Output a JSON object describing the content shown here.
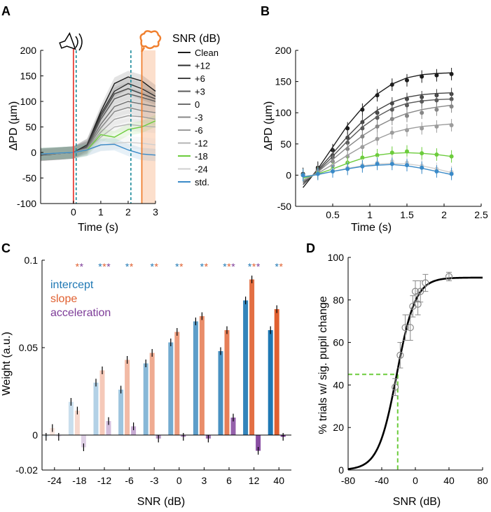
{
  "colors": {
    "onset": "#e8403a",
    "window": "#1a8a9a",
    "noise": "#f08030",
    "green": "#6ccc3c",
    "std": "#3a8ac8",
    "intercept": "#1f78b4",
    "slope": "#e06030",
    "accel": "#7d3c98"
  },
  "icons": {
    "speaker": "speaker-icon",
    "noise": "noise-burst-icon"
  },
  "chart_data": [
    {
      "panel": "A",
      "type": "line",
      "xlabel": "Time (s)",
      "ylabel": "ΔPD (µm)",
      "xlim": [
        -1.2,
        3
      ],
      "ylim": [
        -100,
        200
      ],
      "xticks": [
        "0",
        "1",
        "2",
        "3"
      ],
      "yticks": [
        "200",
        "150",
        "100",
        "50",
        "0",
        "-50",
        "-100"
      ],
      "legend_title": "SNR (dB)",
      "markers": {
        "stimulus_onset": 0,
        "window_start": 0.1,
        "window_end": 2.1,
        "noise_onset": 2.5
      },
      "series": [
        {
          "name": "Clean",
          "color": "#1c1c1c",
          "x": [
            -1.2,
            -0.5,
            0,
            0.5,
            1,
            1.5,
            2,
            2.5,
            3
          ],
          "y": [
            -5,
            -2,
            0,
            15,
            80,
            135,
            148,
            140,
            120
          ]
        },
        {
          "name": "+12",
          "color": "#2e2e2e",
          "x": [
            -1.2,
            -0.5,
            0,
            0.5,
            1,
            1.5,
            2,
            2.5,
            3
          ],
          "y": [
            -5,
            -2,
            0,
            15,
            75,
            120,
            135,
            125,
            110
          ]
        },
        {
          "name": "+6",
          "color": "#444444",
          "x": [
            -1.2,
            -0.5,
            0,
            0.5,
            1,
            1.5,
            2,
            2.5,
            3
          ],
          "y": [
            -4,
            -2,
            0,
            12,
            70,
            115,
            125,
            115,
            105
          ]
        },
        {
          "name": "+3",
          "color": "#5a5a5a",
          "x": [
            -1.2,
            -0.5,
            0,
            0.5,
            1,
            1.5,
            2,
            2.5,
            3
          ],
          "y": [
            -4,
            -2,
            0,
            10,
            65,
            105,
            115,
            108,
            100
          ]
        },
        {
          "name": "0",
          "color": "#707070",
          "x": [
            -1.2,
            -0.5,
            0,
            0.5,
            1,
            1.5,
            2,
            2.5,
            3
          ],
          "y": [
            -4,
            -2,
            0,
            10,
            55,
            90,
            100,
            95,
            90
          ]
        },
        {
          "name": "-3",
          "color": "#878787",
          "x": [
            -1.2,
            -0.5,
            0,
            0.5,
            1,
            1.5,
            2,
            2.5,
            3
          ],
          "y": [
            -4,
            -2,
            0,
            8,
            48,
            80,
            88,
            82,
            78
          ]
        },
        {
          "name": "-6",
          "color": "#9c9c9c",
          "x": [
            -1.2,
            -0.5,
            0,
            0.5,
            1,
            1.5,
            2,
            2.5,
            3
          ],
          "y": [
            -3,
            -2,
            0,
            7,
            40,
            65,
            72,
            70,
            65
          ]
        },
        {
          "name": "-12",
          "color": "#b4b4b4",
          "x": [
            -1.2,
            -0.5,
            0,
            0.5,
            1,
            1.5,
            2,
            2.5,
            3
          ],
          "y": [
            -3,
            -1,
            0,
            6,
            30,
            50,
            55,
            52,
            50
          ]
        },
        {
          "name": "-18",
          "color": "#6ccc3c",
          "x": [
            -1.2,
            -0.5,
            0,
            0.5,
            1,
            1.5,
            2,
            2.5,
            3
          ],
          "y": [
            -3,
            -1,
            0,
            5,
            35,
            30,
            45,
            50,
            62
          ]
        },
        {
          "name": "-24",
          "color": "#cfcfcf",
          "x": [
            -1.2,
            -0.5,
            0,
            0.5,
            1,
            1.5,
            2,
            2.5,
            3
          ],
          "y": [
            -3,
            -1,
            0,
            5,
            14,
            18,
            20,
            18,
            15
          ]
        },
        {
          "name": "std.",
          "color": "#3a8ac8",
          "x": [
            -1.2,
            -0.5,
            0,
            0.5,
            1,
            1.5,
            2,
            2.5,
            3
          ],
          "y": [
            -3,
            -1,
            0,
            5,
            15,
            16,
            5,
            -3,
            -5
          ]
        }
      ]
    },
    {
      "panel": "B",
      "type": "scatter",
      "xlabel": "Time (s)",
      "ylabel": "ΔPD (µm)",
      "xlim": [
        0,
        2.5
      ],
      "ylim": [
        -50,
        200
      ],
      "xticks": [
        "0.5",
        "1",
        "1.5",
        "2",
        "2.5"
      ],
      "yticks": [
        "200",
        "150",
        "100",
        "50",
        "0",
        "-50"
      ],
      "x": [
        0.1,
        0.3,
        0.5,
        0.7,
        0.9,
        1.1,
        1.3,
        1.5,
        1.7,
        1.9,
        2.1
      ],
      "series": [
        {
          "color": "#1c1c1c",
          "points": [
            2,
            12,
            40,
            75,
            105,
            128,
            145,
            152,
            158,
            160,
            162
          ],
          "fit": [
            -20,
            10,
            45,
            80,
            108,
            130,
            146,
            156,
            161,
            163,
            164
          ]
        },
        {
          "color": "#444444",
          "points": [
            1,
            10,
            32,
            60,
            85,
            100,
            115,
            122,
            125,
            128,
            130
          ],
          "fit": [
            -15,
            8,
            35,
            62,
            86,
            104,
            117,
            125,
            129,
            131,
            132
          ]
        },
        {
          "color": "#5a5a5a",
          "points": [
            0,
            8,
            28,
            52,
            75,
            92,
            105,
            112,
            118,
            120,
            122
          ],
          "fit": [
            -12,
            6,
            30,
            55,
            77,
            94,
            107,
            115,
            119,
            121,
            122
          ]
        },
        {
          "color": "#878787",
          "points": [
            0,
            6,
            22,
            42,
            62,
            78,
            90,
            95,
            100,
            105,
            110
          ],
          "fit": [
            -10,
            5,
            25,
            45,
            63,
            78,
            90,
            99,
            105,
            109,
            112
          ]
        },
        {
          "color": "#9c9c9c",
          "points": [
            0,
            4,
            15,
            30,
            45,
            58,
            68,
            72,
            75,
            78,
            80
          ],
          "fit": [
            -8,
            3,
            17,
            32,
            46,
            58,
            68,
            74,
            78,
            80,
            82
          ]
        },
        {
          "color": "#6ccc3c",
          "points": [
            0,
            3,
            10,
            20,
            28,
            32,
            36,
            38,
            35,
            33,
            30
          ],
          "fit": [
            -5,
            2,
            10,
            19,
            27,
            32,
            35,
            36,
            35,
            33,
            30
          ]
        },
        {
          "color": "#cfcfcf",
          "points": [
            0,
            2,
            8,
            12,
            16,
            20,
            22,
            20,
            15,
            10,
            5
          ],
          "fit": [
            -2,
            1,
            6,
            11,
            15,
            18,
            19,
            18,
            15,
            10,
            4
          ]
        },
        {
          "color": "#3a8ac8",
          "points": [
            0,
            2,
            6,
            10,
            14,
            18,
            18,
            16,
            12,
            6,
            2
          ],
          "fit": [
            -3,
            1,
            6,
            10,
            14,
            16,
            17,
            15,
            11,
            6,
            1
          ]
        }
      ]
    },
    {
      "panel": "C",
      "type": "bar",
      "xlabel": "SNR (dB)",
      "ylabel": "Weight (a.u.)",
      "ylim": [
        -0.02,
        0.1
      ],
      "yticks": [
        "0.1",
        "0.05",
        "0",
        "-0.02"
      ],
      "categories": [
        "-24",
        "-18",
        "-12",
        "-6",
        "-3",
        "0",
        "3",
        "6",
        "12",
        "40"
      ],
      "legend": [
        "intercept",
        "slope",
        "acceleration"
      ],
      "series": [
        {
          "name": "intercept",
          "values": [
            -0.001,
            0.019,
            0.03,
            0.026,
            0.041,
            0.053,
            0.065,
            0.048,
            0.077,
            0.06
          ]
        },
        {
          "name": "slope",
          "values": [
            0.004,
            0.014,
            0.037,
            0.043,
            0.047,
            0.059,
            0.068,
            0.06,
            0.089,
            0.072
          ]
        },
        {
          "name": "acceleration",
          "values": [
            -0.001,
            -0.007,
            0.008,
            0.005,
            -0.002,
            -0.001,
            -0.002,
            0.01,
            -0.009,
            -0.001
          ]
        }
      ],
      "significance": [
        {
          "category": "-18",
          "stars": [
            "slope",
            "acceleration"
          ]
        },
        {
          "category": "-12",
          "stars": [
            "intercept",
            "slope",
            "acceleration"
          ]
        },
        {
          "category": "-6",
          "stars": [
            "intercept",
            "slope"
          ]
        },
        {
          "category": "-3",
          "stars": [
            "intercept",
            "slope"
          ]
        },
        {
          "category": "0",
          "stars": [
            "intercept",
            "slope"
          ]
        },
        {
          "category": "3",
          "stars": [
            "intercept",
            "slope"
          ]
        },
        {
          "category": "6",
          "stars": [
            "intercept",
            "slope",
            "acceleration"
          ]
        },
        {
          "category": "12",
          "stars": [
            "intercept",
            "slope",
            "acceleration"
          ]
        },
        {
          "category": "40",
          "stars": [
            "intercept",
            "slope"
          ]
        }
      ]
    },
    {
      "panel": "D",
      "type": "scatter",
      "xlabel": "SNR (dB)",
      "ylabel": "% trials w/ sig. pupil change",
      "xlim": [
        -80,
        80
      ],
      "ylim": [
        0,
        100
      ],
      "xticks": [
        "-80",
        "-40",
        "0",
        "40",
        "80"
      ],
      "yticks": [
        "100",
        "80",
        "60",
        "40",
        "20",
        "0"
      ],
      "points": [
        {
          "x": -24,
          "y": 39,
          "err": 4
        },
        {
          "x": -18,
          "y": 54,
          "err": 6
        },
        {
          "x": -12,
          "y": 67,
          "err": 6
        },
        {
          "x": -6,
          "y": 67,
          "err": 6
        },
        {
          "x": -3,
          "y": 77,
          "err": 5
        },
        {
          "x": 0,
          "y": 84,
          "err": 5
        },
        {
          "x": 3,
          "y": 78,
          "err": 5
        },
        {
          "x": 6,
          "y": 84,
          "err": 5
        },
        {
          "x": 12,
          "y": 88,
          "err": 4
        },
        {
          "x": 40,
          "y": 91,
          "err": 2
        }
      ],
      "fit": {
        "type": "sigmoid",
        "min": 0,
        "max": 90.5,
        "x50": -22,
        "slope": 0.09
      },
      "threshold": {
        "x": -21,
        "y": 45
      }
    }
  ]
}
